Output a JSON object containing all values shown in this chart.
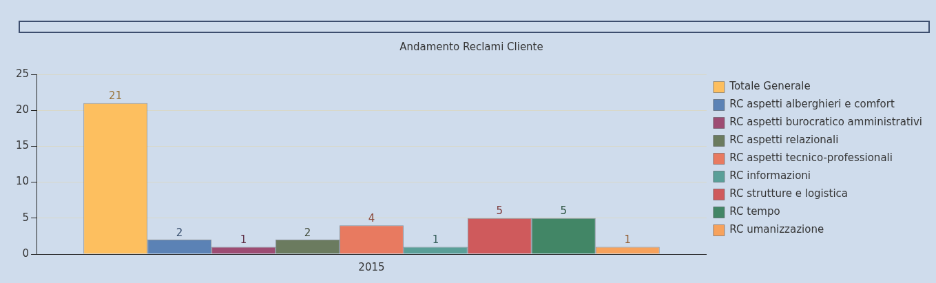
{
  "chart_data": {
    "type": "bar",
    "title": "Andamento Reclami Cliente",
    "categories": [
      "2015"
    ],
    "series": [
      {
        "name": "Totale Generale",
        "color": "#fdbf5f",
        "values": [
          21
        ]
      },
      {
        "name": "RC aspetti alberghieri e comfort",
        "color": "#5b82b5",
        "values": [
          2
        ]
      },
      {
        "name": "RC aspetti burocratico amministrativi",
        "color": "#9d4c73",
        "values": [
          1
        ]
      },
      {
        "name": "RC aspetti relazionali",
        "color": "#6b7b5f",
        "values": [
          2
        ]
      },
      {
        "name": "RC aspetti tecnico-professionali",
        "color": "#e87a60",
        "values": [
          4
        ]
      },
      {
        "name": "RC informazioni",
        "color": "#5a9f98",
        "values": [
          1
        ]
      },
      {
        "name": "RC strutture e logistica",
        "color": "#cf5a5c",
        "values": [
          5
        ]
      },
      {
        "name": "RC tempo",
        "color": "#428666",
        "values": [
          5
        ]
      },
      {
        "name": "RC umanizzazione",
        "color": "#f7a25c",
        "values": [
          1
        ]
      }
    ],
    "ylim": [
      0,
      25
    ],
    "yticks": [
      0,
      5,
      10,
      15,
      20,
      25
    ],
    "grid": "y",
    "legend": "right",
    "data_labels": true
  }
}
